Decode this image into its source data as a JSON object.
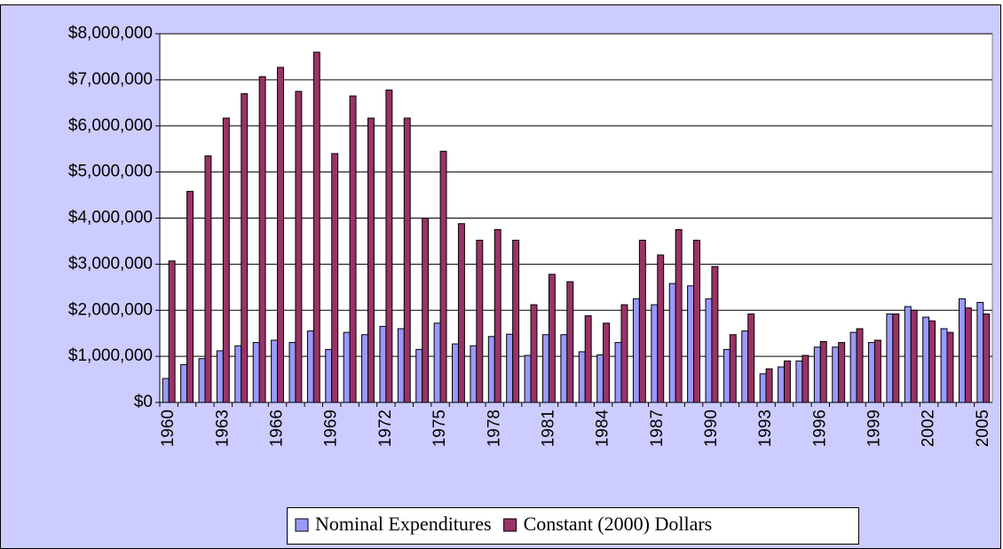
{
  "chart_data": {
    "type": "bar",
    "categories": [
      "1960",
      null,
      null,
      "1963",
      null,
      null,
      "1966",
      null,
      null,
      "1969",
      null,
      null,
      "1972",
      null,
      null,
      "1975",
      null,
      null,
      "1978",
      null,
      null,
      "1981",
      null,
      null,
      "1984",
      null,
      null,
      "1987",
      null,
      null,
      "1990",
      null,
      null,
      "1993",
      null,
      null,
      "1996",
      null,
      null,
      "1999",
      null,
      null,
      "2002",
      null,
      null,
      "2005"
    ],
    "series": [
      {
        "name": "Nominal Expenditures",
        "color": "#9999ff",
        "values": [
          520000,
          820000,
          950000,
          1120000,
          1230000,
          1300000,
          1350000,
          1300000,
          1550000,
          1150000,
          1520000,
          1470000,
          1650000,
          1600000,
          1150000,
          1720000,
          1270000,
          1230000,
          1430000,
          1480000,
          1020000,
          1470000,
          1470000,
          1100000,
          1030000,
          1300000,
          2250000,
          2120000,
          2580000,
          2530000,
          2250000,
          1150000,
          1550000,
          620000,
          770000,
          900000,
          1200000,
          1200000,
          1520000,
          1300000,
          1920000,
          2080000,
          1850000,
          1600000,
          2250000,
          2170000
        ]
      },
      {
        "name": "Constant (2000) Dollars",
        "color": "#993366",
        "values": [
          3070000,
          4580000,
          5350000,
          6170000,
          6700000,
          7070000,
          7270000,
          6750000,
          7600000,
          5400000,
          6650000,
          6170000,
          6780000,
          6170000,
          4000000,
          5450000,
          3880000,
          3520000,
          3750000,
          3520000,
          2120000,
          2780000,
          2620000,
          1880000,
          1720000,
          2120000,
          3520000,
          3200000,
          3750000,
          3520000,
          2950000,
          1470000,
          1920000,
          730000,
          900000,
          1020000,
          1320000,
          1300000,
          1600000,
          1350000,
          1920000,
          2000000,
          1770000,
          1520000,
          2050000,
          1920000
        ]
      }
    ],
    "ylim": [
      0,
      8000000
    ],
    "yticks": [
      {
        "value": 0,
        "label": "$0"
      },
      {
        "value": 1000000,
        "label": "$1,000,000"
      },
      {
        "value": 2000000,
        "label": "$2,000,000"
      },
      {
        "value": 3000000,
        "label": "$3,000,000"
      },
      {
        "value": 4000000,
        "label": "$4,000,000"
      },
      {
        "value": 5000000,
        "label": "$5,000,000"
      },
      {
        "value": 6000000,
        "label": "$6,000,000"
      },
      {
        "value": 7000000,
        "label": "$7,000,000"
      },
      {
        "value": 8000000,
        "label": "$8,000,000"
      }
    ],
    "grid": true,
    "legend": "bottom"
  }
}
